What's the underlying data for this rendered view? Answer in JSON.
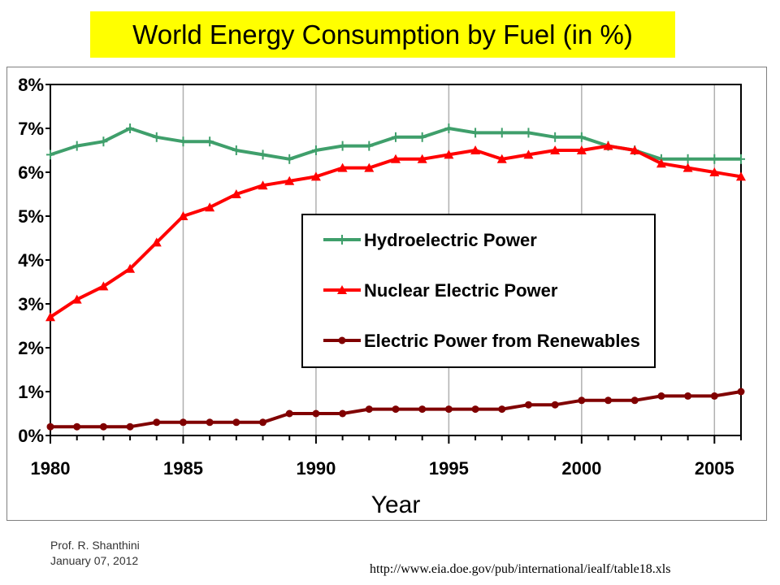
{
  "title": "World Energy Consumption by Fuel (in %)",
  "footer": {
    "author": "Prof. R. Shanthini",
    "date": "January 07, 2012",
    "source_url": "http://www.eia.doe.gov/pub/international/iealf/table18.xls"
  },
  "chart_data": {
    "type": "line",
    "title": "World Energy Consumption by Fuel (in %)",
    "xlabel": "Year",
    "ylabel": "",
    "xlim": [
      1980,
      2006
    ],
    "ylim": [
      0,
      8
    ],
    "x_ticks": [
      1980,
      1985,
      1990,
      1995,
      2000,
      2005
    ],
    "x_tick_labels": [
      "1980",
      "1985",
      "1990",
      "1995",
      "2000",
      "2005"
    ],
    "y_ticks": [
      0,
      1,
      2,
      3,
      4,
      5,
      6,
      7,
      8
    ],
    "y_tick_labels": [
      "0%",
      "1%",
      "2%",
      "3%",
      "4%",
      "5%",
      "6%",
      "7%",
      "8%"
    ],
    "grid": "vertical",
    "legend_position": "center-right",
    "x": [
      1980,
      1981,
      1982,
      1983,
      1984,
      1985,
      1986,
      1987,
      1988,
      1989,
      1990,
      1991,
      1992,
      1993,
      1994,
      1995,
      1996,
      1997,
      1998,
      1999,
      2000,
      2001,
      2002,
      2003,
      2004,
      2005,
      2006
    ],
    "series": [
      {
        "name": "Hydroelectric Power",
        "color": "#3f9f6b",
        "marker": "plus",
        "values": [
          6.4,
          6.6,
          6.7,
          7.0,
          6.8,
          6.7,
          6.7,
          6.5,
          6.4,
          6.3,
          6.5,
          6.6,
          6.6,
          6.8,
          6.8,
          7.0,
          6.9,
          6.9,
          6.9,
          6.8,
          6.8,
          6.6,
          6.5,
          6.3,
          6.3,
          6.3,
          6.3
        ]
      },
      {
        "name": "Nuclear Electric Power",
        "color": "#ff0000",
        "marker": "triangle",
        "values": [
          2.7,
          3.1,
          3.4,
          3.8,
          4.4,
          5.0,
          5.2,
          5.5,
          5.7,
          5.8,
          5.9,
          6.1,
          6.1,
          6.3,
          6.3,
          6.4,
          6.5,
          6.3,
          6.4,
          6.5,
          6.5,
          6.6,
          6.5,
          6.2,
          6.1,
          6.0,
          5.9
        ]
      },
      {
        "name": "Electric Power from Renewables",
        "color": "#800000",
        "marker": "circle",
        "values": [
          0.2,
          0.2,
          0.2,
          0.2,
          0.3,
          0.3,
          0.3,
          0.3,
          0.3,
          0.5,
          0.5,
          0.5,
          0.6,
          0.6,
          0.6,
          0.6,
          0.6,
          0.6,
          0.7,
          0.7,
          0.8,
          0.8,
          0.8,
          0.9,
          0.9,
          0.9,
          1.0
        ]
      }
    ]
  }
}
